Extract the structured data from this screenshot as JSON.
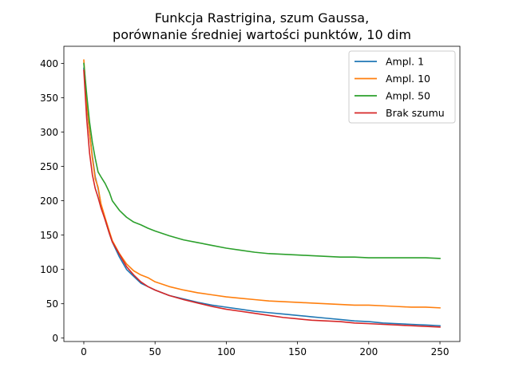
{
  "chart_data": {
    "type": "line",
    "title_lines": [
      "Funkcja Rastrigina, szum Gaussa,",
      "porównanie średniej wartości punktów, 10 dim"
    ],
    "xlabel": "",
    "ylabel": "",
    "xlim": [
      -14,
      264
    ],
    "ylim": [
      -5,
      425
    ],
    "xticks": [
      0,
      50,
      100,
      150,
      200,
      250
    ],
    "yticks": [
      0,
      50,
      100,
      150,
      200,
      250,
      300,
      350,
      400
    ],
    "grid": false,
    "legend_position": "top-right",
    "series": [
      {
        "name": "Ampl. 1",
        "color": "#1f77b4",
        "x": [
          0,
          2,
          4,
          6,
          8,
          10,
          12,
          15,
          18,
          20,
          25,
          30,
          35,
          40,
          45,
          50,
          60,
          70,
          80,
          90,
          100,
          110,
          120,
          130,
          140,
          150,
          160,
          170,
          180,
          190,
          200,
          210,
          220,
          230,
          240,
          250
        ],
        "y": [
          393,
          340,
          300,
          265,
          235,
          218,
          195,
          172,
          152,
          140,
          118,
          100,
          90,
          80,
          75,
          70,
          62,
          57,
          52,
          48,
          45,
          42,
          39,
          37,
          35,
          33,
          31,
          29,
          27,
          25,
          24,
          22,
          21,
          20,
          19,
          18
        ]
      },
      {
        "name": "Ampl. 10",
        "color": "#ff7f0e",
        "x": [
          0,
          2,
          4,
          6,
          8,
          10,
          12,
          15,
          18,
          20,
          25,
          30,
          35,
          40,
          45,
          50,
          60,
          70,
          80,
          90,
          100,
          110,
          120,
          130,
          140,
          150,
          160,
          170,
          180,
          190,
          200,
          210,
          220,
          230,
          240,
          250
        ],
        "y": [
          405,
          345,
          300,
          262,
          232,
          220,
          196,
          175,
          155,
          142,
          123,
          108,
          98,
          92,
          88,
          82,
          75,
          70,
          66,
          63,
          60,
          58,
          56,
          54,
          53,
          52,
          51,
          50,
          49,
          48,
          48,
          47,
          46,
          45,
          45,
          44
        ]
      },
      {
        "name": "Ampl. 50",
        "color": "#2ca02c",
        "x": [
          0,
          2,
          4,
          6,
          8,
          10,
          12,
          15,
          18,
          20,
          25,
          30,
          35,
          40,
          45,
          50,
          60,
          70,
          80,
          90,
          100,
          110,
          120,
          130,
          140,
          150,
          160,
          170,
          180,
          190,
          200,
          210,
          220,
          230,
          240,
          250
        ],
        "y": [
          400,
          355,
          315,
          285,
          262,
          242,
          235,
          225,
          212,
          200,
          186,
          176,
          169,
          165,
          160,
          156,
          149,
          143,
          139,
          135,
          131,
          128,
          125,
          123,
          122,
          121,
          120,
          119,
          118,
          118,
          117,
          117,
          117,
          117,
          117,
          116
        ]
      },
      {
        "name": "Brak szumu",
        "color": "#d62728",
        "x": [
          0,
          2,
          4,
          6,
          8,
          10,
          12,
          15,
          18,
          20,
          25,
          30,
          35,
          40,
          45,
          50,
          60,
          70,
          80,
          90,
          100,
          110,
          120,
          130,
          140,
          150,
          160,
          170,
          180,
          190,
          200,
          210,
          220,
          230,
          240,
          250
        ],
        "y": [
          390,
          320,
          270,
          238,
          218,
          205,
          190,
          172,
          152,
          140,
          122,
          104,
          92,
          82,
          75,
          70,
          62,
          56,
          51,
          46,
          42,
          39,
          36,
          33,
          30,
          28,
          26,
          25,
          24,
          22,
          21,
          20,
          19,
          18,
          17,
          16
        ]
      }
    ]
  }
}
